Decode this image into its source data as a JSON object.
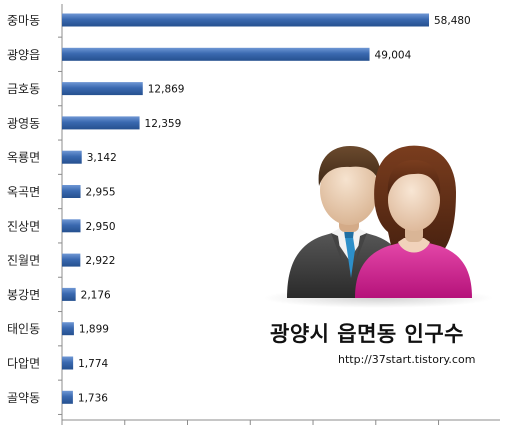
{
  "chart_data": {
    "type": "bar",
    "orientation": "horizontal",
    "title": "광양시 읍면동 인구수",
    "categories": [
      "중마동",
      "광양읍",
      "금호동",
      "광영동",
      "옥룡면",
      "옥곡면",
      "진상면",
      "진월면",
      "봉강면",
      "태인동",
      "다압면",
      "골약동"
    ],
    "values": [
      58480,
      49004,
      12869,
      12359,
      3142,
      2955,
      2950,
      2922,
      2176,
      1899,
      1774,
      1736
    ],
    "value_labels": [
      "58,480",
      "49,004",
      "12,869",
      "12,359",
      "3,142",
      "2,955",
      "2,950",
      "2,922",
      "2,176",
      "1,899",
      "1,774",
      "1,736"
    ],
    "xlim": [
      0,
      70000
    ],
    "grid": false,
    "legend": "none",
    "bar_color": "#3a69b0"
  },
  "caption": {
    "title": "광양시 읍면동 인구수",
    "url": "http://37start.tistory.com"
  },
  "illustration": {
    "icon": "people-couple-icon",
    "man_suit_color": "#3a3a3a",
    "woman_top_color": "#d1198e"
  }
}
